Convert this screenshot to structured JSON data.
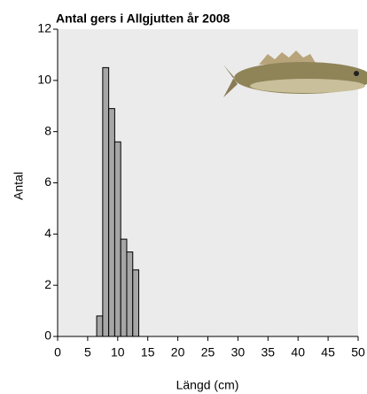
{
  "chart_data": {
    "type": "histogram",
    "title": "Antal gers i Allgjutten år 2008",
    "x_label": "Längd (cm)",
    "y_label": "Antal",
    "bins": [
      6.5,
      7.5,
      8.5,
      9.5,
      10.5,
      11.5,
      12.5,
      13.5
    ],
    "values": [
      0.8,
      10.5,
      8.9,
      7.6,
      3.8,
      3.3,
      2.6
    ],
    "color": "#a6a6a6",
    "xlim": [
      0,
      50
    ],
    "xticks": [
      0,
      5,
      10,
      15,
      20,
      25,
      30,
      35,
      40,
      45,
      50
    ],
    "ylim": [
      0,
      12
    ],
    "yticks": [
      0,
      2,
      4,
      6,
      8,
      10,
      12
    ]
  }
}
